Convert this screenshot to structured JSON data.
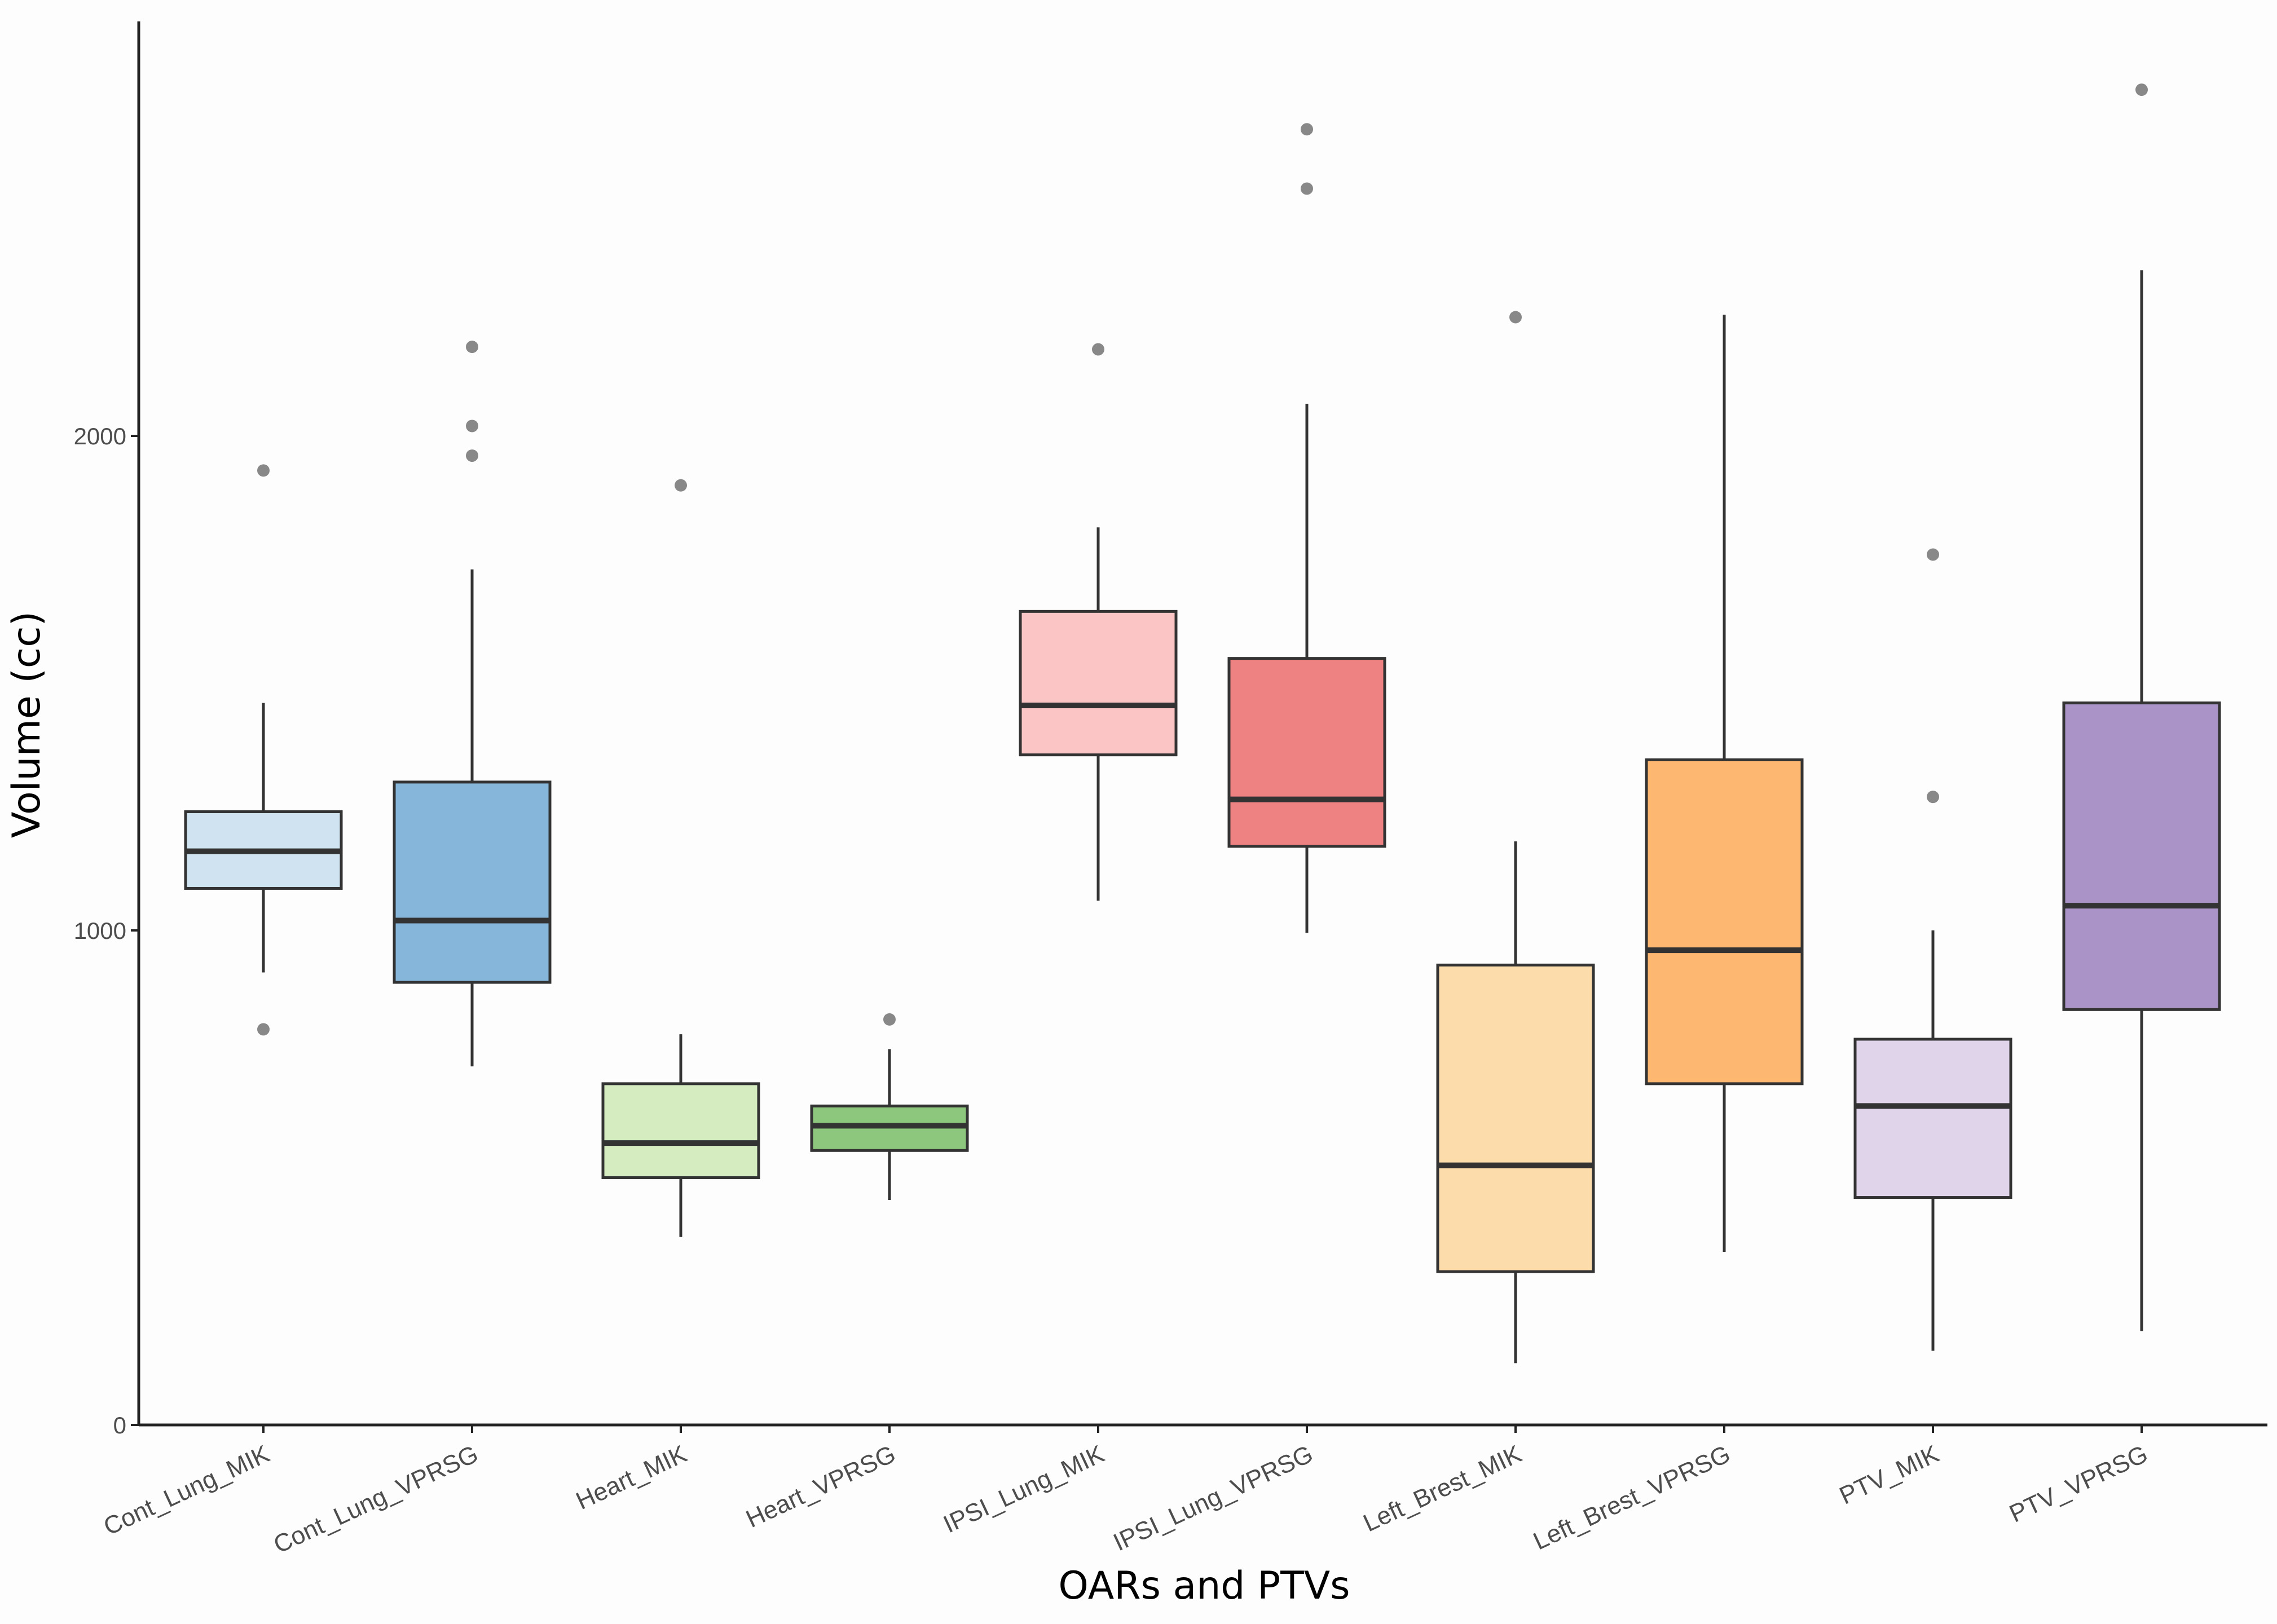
{
  "chart_data": {
    "type": "boxplot",
    "title": "",
    "xlabel": "OARs and PTVs",
    "ylabel": "Volume (cc)",
    "ylim": [
      0,
      2850
    ],
    "yticks": [
      0,
      1000,
      2000
    ],
    "ytick_labels": [
      "0",
      "1000",
      "2000"
    ],
    "grid": false,
    "legend": "none",
    "categories": [
      "Cont_Lung_MIK",
      "Cont_Lung_VPRSG",
      "Heart_MIK",
      "Heart_VPRSG",
      "IPSI_Lung_MIK",
      "IPSI_Lung_VPRSG",
      "Left_Brest_MIK",
      "Left_Brest_VPRSG",
      "PTV_MIK",
      "PTV_VPRSG"
    ],
    "boxes": [
      {
        "name": "Cont_Lung_MIK",
        "whisker_low": 915,
        "q1": 1085,
        "median": 1160,
        "q3": 1240,
        "whisker_high": 1460,
        "outliers": [
          800,
          1930
        ],
        "color": "#cfe4f0"
      },
      {
        "name": "Cont_Lung_VPRSG",
        "whisker_low": 725,
        "q1": 895,
        "median": 1020,
        "q3": 1300,
        "whisker_high": 1730,
        "outliers": [
          1960,
          2020,
          2180
        ],
        "color": "#86b6d9"
      },
      {
        "name": "Heart_MIK",
        "whisker_low": 380,
        "q1": 500,
        "median": 570,
        "q3": 690,
        "whisker_high": 790,
        "outliers": [
          1900
        ],
        "color": "#d5ecc1"
      },
      {
        "name": "Heart_VPRSG",
        "whisker_low": 455,
        "q1": 555,
        "median": 605,
        "q3": 645,
        "whisker_high": 760,
        "outliers": [
          820
        ],
        "color": "#8dc77e"
      },
      {
        "name": "IPSI_Lung_MIK",
        "whisker_low": 1060,
        "q1": 1355,
        "median": 1455,
        "q3": 1645,
        "whisker_high": 1815,
        "outliers": [
          2175
        ],
        "color": "#fbc4c5"
      },
      {
        "name": "IPSI_Lung_VPRSG",
        "whisker_low": 995,
        "q1": 1170,
        "median": 1265,
        "q3": 1550,
        "whisker_high": 2065,
        "outliers": [
          2500,
          2620
        ],
        "color": "#ee8182"
      },
      {
        "name": "Left_Brest_MIK",
        "whisker_low": 125,
        "q1": 310,
        "median": 525,
        "q3": 930,
        "whisker_high": 1180,
        "outliers": [
          2240
        ],
        "color": "#fcdcab"
      },
      {
        "name": "Left_Brest_VPRSG",
        "whisker_low": 350,
        "q1": 690,
        "median": 960,
        "q3": 1345,
        "whisker_high": 2245,
        "outliers": [],
        "color": "#fdb771"
      },
      {
        "name": "PTV_MIK",
        "whisker_low": 150,
        "q1": 460,
        "median": 645,
        "q3": 780,
        "whisker_high": 1000,
        "outliers": [
          1270,
          1760
        ],
        "color": "#e0d4ea"
      },
      {
        "name": "PTV_VPRSG",
        "whisker_low": 190,
        "q1": 840,
        "median": 1050,
        "q3": 1460,
        "whisker_high": 2335,
        "outliers": [
          2700
        ],
        "color": "#aa93c6"
      }
    ]
  }
}
